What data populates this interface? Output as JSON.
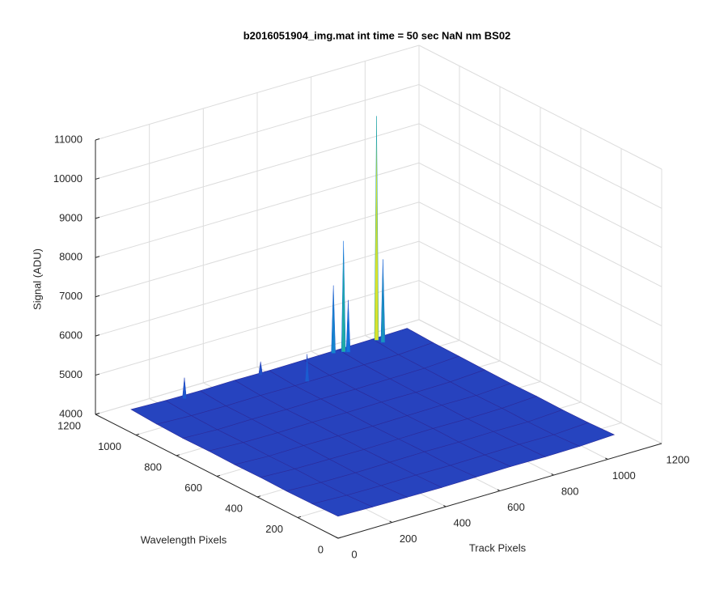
{
  "chart_data": {
    "type": "surface",
    "title": "b2016051904_img.mat int time = 50 sec  NaN nm BS02",
    "xlabel": "Track Pixels",
    "ylabel": "Wavelength Pixels",
    "zlabel": "Signal (ADU)",
    "xlim": [
      0,
      1200
    ],
    "ylim": [
      0,
      1200
    ],
    "zlim": [
      4000,
      11000
    ],
    "xticks": [
      0,
      200,
      400,
      600,
      800,
      1000,
      1200
    ],
    "yticks": [
      0,
      200,
      400,
      600,
      800,
      1000,
      1200
    ],
    "zticks": [
      4000,
      5000,
      6000,
      7000,
      8000,
      9000,
      10000,
      11000
    ],
    "grid": true,
    "colormap": [
      "#3030b0",
      "#1070e0",
      "#20b0a0",
      "#a8bd5a",
      "#f9fb0e"
    ],
    "x": [
      0,
      128,
      256,
      384,
      512,
      640,
      768,
      896,
      1024
    ],
    "y": [
      0,
      128,
      256,
      384,
      512,
      640,
      768,
      896,
      1024
    ],
    "z": [
      [
        4560,
        4540,
        4530,
        4520,
        4530,
        4540,
        4530,
        4540,
        4580
      ],
      [
        4540,
        4500,
        4490,
        4500,
        4490,
        4500,
        4510,
        4500,
        4550
      ],
      [
        4530,
        4490,
        4480,
        4490,
        4500,
        4490,
        4500,
        4490,
        4540
      ],
      [
        4540,
        4500,
        4490,
        4480,
        4490,
        4500,
        4490,
        4500,
        4550
      ],
      [
        4530,
        4490,
        4500,
        4490,
        4480,
        4490,
        4500,
        4490,
        4540
      ],
      [
        4540,
        4500,
        4490,
        4500,
        4490,
        4500,
        4490,
        4500,
        4550
      ],
      [
        4530,
        4490,
        4500,
        4490,
        4500,
        4490,
        4500,
        4510,
        4560
      ],
      [
        4550,
        4510,
        4500,
        4510,
        4500,
        4510,
        4520,
        4520,
        4570
      ],
      [
        4590,
        4560,
        4550,
        4560,
        4550,
        4560,
        4570,
        4580,
        4600
      ]
    ],
    "spikes": [
      {
        "x": 900,
        "y": 1010,
        "z": 10300
      },
      {
        "x": 770,
        "y": 1000,
        "z": 7400
      },
      {
        "x": 905,
        "y": 985,
        "z": 6700
      },
      {
        "x": 780,
        "y": 990,
        "z": 5900
      },
      {
        "x": 740,
        "y": 1010,
        "z": 6300
      },
      {
        "x": 180,
        "y": 1000,
        "z": 5100
      },
      {
        "x": 470,
        "y": 1010,
        "z": 4900
      },
      {
        "x": 560,
        "y": 900,
        "z": 5200
      }
    ]
  }
}
